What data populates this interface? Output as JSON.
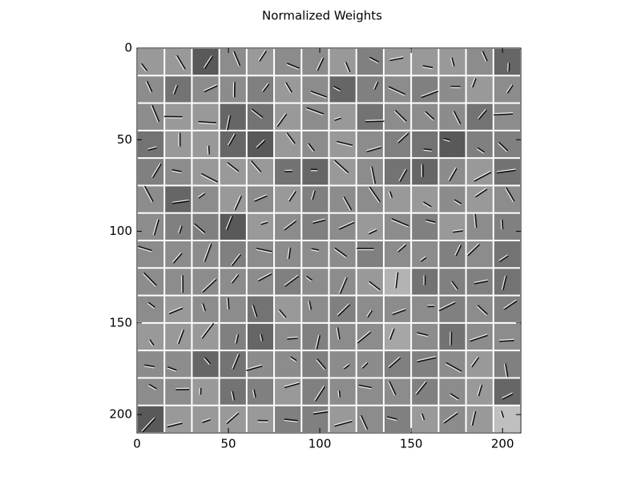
{
  "chart_data": {
    "type": "image",
    "title": "Normalized Weights",
    "xlim": [
      0,
      210
    ],
    "ylim": [
      210,
      0
    ],
    "xticks": [
      0,
      50,
      100,
      150,
      200
    ],
    "yticks": [
      0,
      50,
      100,
      150,
      200
    ],
    "patch_size": 15,
    "patch_gray": [
      [
        0.6,
        0.6,
        0.35,
        0.55,
        0.6,
        0.55,
        0.55,
        0.6,
        0.5,
        0.6,
        0.6,
        0.6,
        0.55,
        0.4
      ],
      [
        0.55,
        0.45,
        0.55,
        0.55,
        0.5,
        0.6,
        0.55,
        0.4,
        0.5,
        0.55,
        0.5,
        0.55,
        0.6,
        0.55
      ],
      [
        0.55,
        0.6,
        0.6,
        0.4,
        0.45,
        0.6,
        0.55,
        0.6,
        0.45,
        0.55,
        0.55,
        0.55,
        0.45,
        0.55
      ],
      [
        0.45,
        0.6,
        0.6,
        0.4,
        0.35,
        0.6,
        0.55,
        0.6,
        0.55,
        0.5,
        0.45,
        0.35,
        0.5,
        0.5
      ],
      [
        0.5,
        0.55,
        0.6,
        0.6,
        0.6,
        0.45,
        0.4,
        0.6,
        0.55,
        0.45,
        0.4,
        0.55,
        0.6,
        0.45
      ],
      [
        0.55,
        0.4,
        0.55,
        0.6,
        0.55,
        0.6,
        0.5,
        0.55,
        0.55,
        0.6,
        0.6,
        0.55,
        0.6,
        0.55
      ],
      [
        0.55,
        0.5,
        0.5,
        0.35,
        0.6,
        0.55,
        0.5,
        0.55,
        0.6,
        0.55,
        0.5,
        0.6,
        0.55,
        0.5
      ],
      [
        0.55,
        0.55,
        0.55,
        0.5,
        0.55,
        0.55,
        0.55,
        0.55,
        0.5,
        0.55,
        0.55,
        0.5,
        0.55,
        0.45
      ],
      [
        0.55,
        0.55,
        0.55,
        0.55,
        0.55,
        0.5,
        0.55,
        0.55,
        0.6,
        0.7,
        0.45,
        0.5,
        0.5,
        0.45
      ],
      [
        0.55,
        0.6,
        0.55,
        0.55,
        0.45,
        0.6,
        0.55,
        0.5,
        0.55,
        0.55,
        0.55,
        0.5,
        0.55,
        0.5
      ],
      [
        0.6,
        0.6,
        0.6,
        0.5,
        0.4,
        0.55,
        0.5,
        0.55,
        0.55,
        0.65,
        0.55,
        0.45,
        0.55,
        0.55
      ],
      [
        0.55,
        0.55,
        0.4,
        0.45,
        0.55,
        0.55,
        0.5,
        0.55,
        0.55,
        0.5,
        0.5,
        0.55,
        0.6,
        0.5
      ],
      [
        0.55,
        0.55,
        0.6,
        0.45,
        0.5,
        0.6,
        0.5,
        0.55,
        0.55,
        0.55,
        0.5,
        0.55,
        0.6,
        0.4
      ],
      [
        0.35,
        0.6,
        0.6,
        0.6,
        0.6,
        0.5,
        0.5,
        0.6,
        0.55,
        0.5,
        0.6,
        0.55,
        0.6,
        0.75
      ]
    ]
  }
}
